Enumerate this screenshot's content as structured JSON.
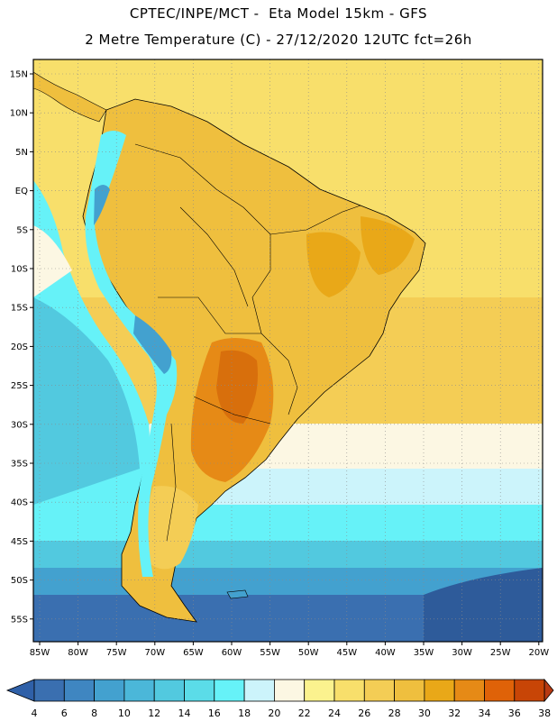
{
  "header": {
    "line1": "CPTEC/INPE/MCT -  Eta Model 15km - GFS",
    "line2": "2 Metre Temperature (C) - 27/12/2020 12UTC fct=26h"
  },
  "axes": {
    "lat_labels": [
      "15N",
      "10N",
      "5N",
      "EQ",
      "5S",
      "10S",
      "15S",
      "20S",
      "25S",
      "30S",
      "35S",
      "40S",
      "45S",
      "50S",
      "55S"
    ],
    "lon_labels": [
      "85W",
      "80W",
      "75W",
      "70W",
      "65W",
      "60W",
      "55W",
      "50W",
      "45W",
      "40W",
      "35W",
      "30W",
      "25W",
      "20W"
    ]
  },
  "colorbar": {
    "labels": [
      "4",
      "6",
      "8",
      "10",
      "12",
      "14",
      "16",
      "18",
      "20",
      "22",
      "24",
      "26",
      "28",
      "30",
      "32",
      "34",
      "36",
      "38"
    ],
    "colors": [
      "#3a6fb0",
      "#3f86c1",
      "#43a1cf",
      "#4bb7d9",
      "#52c9df",
      "#5bdce8",
      "#66f2f8",
      "#ccf4fb",
      "#fcf7e3",
      "#fbf28e",
      "#f8df6b",
      "#f4cd55",
      "#efbf3e",
      "#e9a818",
      "#e68a16",
      "#df6208",
      "#c84506",
      "#b83a12"
    ]
  },
  "map": {
    "ocean_colors": {
      "warm_north": "#f8df6b",
      "subtropic": "#f4cd55",
      "pale": "#fcf7e3",
      "cyan_light": "#ccf4fb",
      "cyan": "#66f2f8",
      "aqua": "#52c9df",
      "blue_mid": "#43a1cf",
      "blue_deep": "#3a6fb0",
      "blue_darkest": "#2e5b9a"
    },
    "land_colors": {
      "amazon": "#efbf3e",
      "hot": "#e9a818",
      "hotter": "#e68a16",
      "hottest": "#d86f0c",
      "andes": "#66f2f8",
      "andes_high": "#43a1cf",
      "patagonia": "#f4cd55"
    }
  }
}
